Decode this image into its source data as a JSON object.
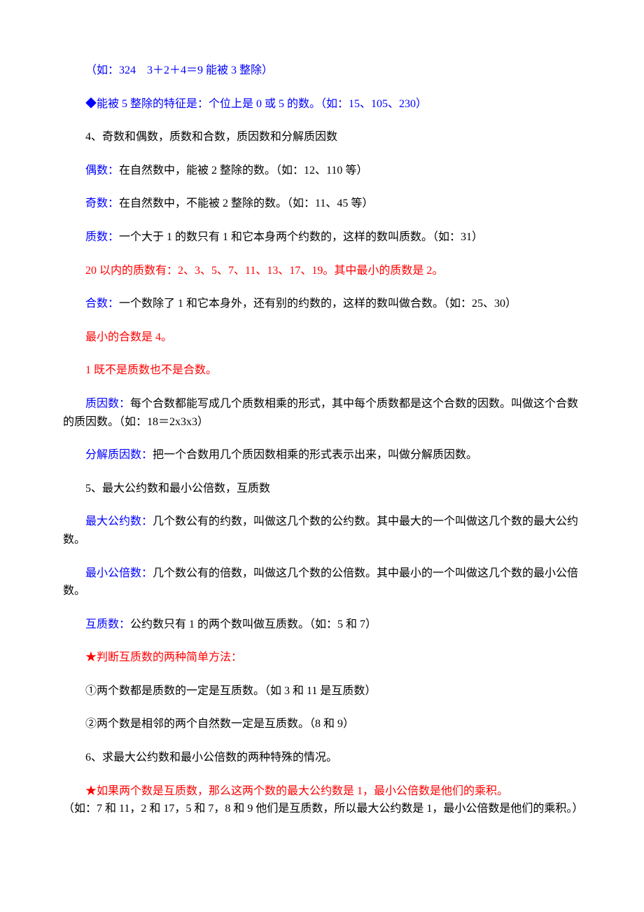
{
  "colors": {
    "blue": "#0000ff",
    "red": "#ff0000",
    "black": "#000000",
    "background": "#ffffff"
  },
  "typography": {
    "font_family": "SimSun",
    "font_size_pt": 12,
    "line_height": 1.6
  },
  "lines": {
    "l1": "（如：324　3＋2＋4＝9 能被 3 整除）",
    "l2": "◆能被 5 整除的特征是：个位上是 0 或 5 的数。（如：15、105、230）",
    "l3": "4、奇数和偶数，质数和合数，质因数和分解质因数",
    "l4a": "偶数：",
    "l4b": "在自然数中，能被 2 整除的数。（如：12、110 等）",
    "l5a": "奇数：",
    "l5b": "在自然数中，不能被 2 整除的数。（如：11、45 等）",
    "l6a": "质数：",
    "l6b": "一个大于 1 的数只有 1 和它本身两个约数的，这样的数叫质数。（如：31）",
    "l7": "20 以内的质数有：2、3、5、7、11、13、17、19。其中最小的质数是 2。",
    "l8a": "合数：",
    "l8b": "一个数除了 1 和它本身外，还有别的约数的，这样的数叫做合数。（如：25、30）",
    "l9": "最小的合数是 4。",
    "l10": "1 既不是质数也不是合数。",
    "l11a": "质因数：",
    "l11b": "每个合数都能写成几个质数相乘的形式，其中每个质数都是这个合数的因数。叫做这个合数的质因数。（如：18＝2x3x3）",
    "l12a": "分解质因数：",
    "l12b": "把一个合数用几个质因数相乘的形式表示出来，叫做分解质因数。",
    "l13": "5、最大公约数和最小公倍数，互质数",
    "l14a": "最大公约数：",
    "l14b": "几个数公有的约数，叫做这几个数的公约数。其中最大的一个叫做这几个数的最大公约数。",
    "l15a": "最小公倍数：",
    "l15b": "几个数公有的倍数，叫做这几个数的公倍数。其中最小的一个叫做这几个数的最小公倍数。",
    "l16a": "互质数：",
    "l16b": "公约数只有 1 的两个数叫做互质数。（如：5 和 7）",
    "l17": "★判断互质数的两种简单方法：",
    "l18": "①两个数都是质数的一定是互质数。（如 3 和 11 是互质数）",
    "l19": "②两个数是相邻的两个自然数一定是互质数。（8 和 9）",
    "l20": "6、求最大公约数和最小公倍数的两种特殊的情况。",
    "l21a": "★如果两个数是互质数，那么这两个数的最大公约数是 1，最小公倍数是他们的乘积。",
    "l21b": "（如：7 和 11，2 和 17，5 和 7，8 和 9 他们是互质数，所以最大公约数是 1，最小公倍数是他们的乘积。）"
  }
}
